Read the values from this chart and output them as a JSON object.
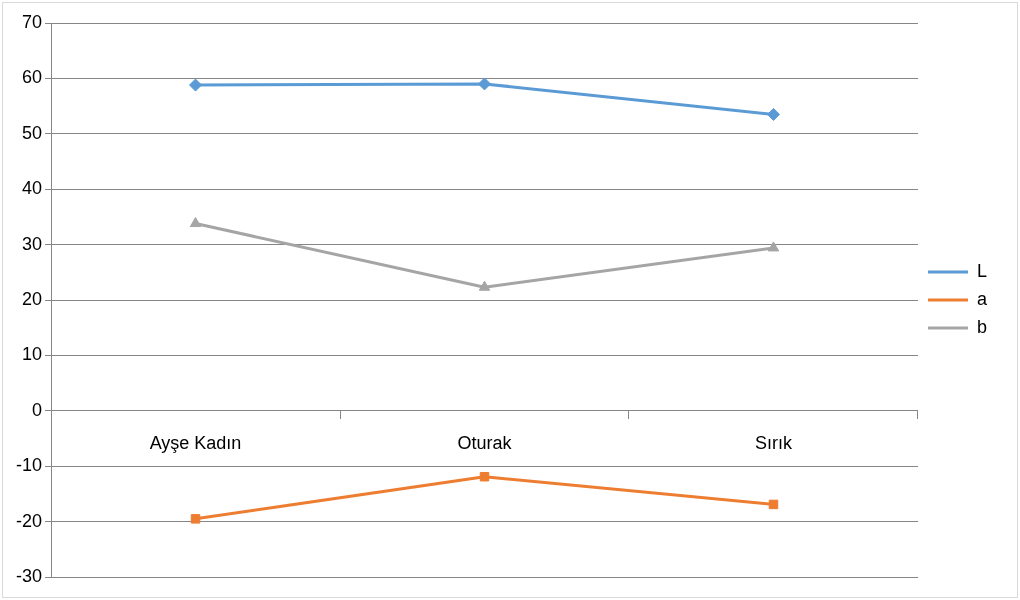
{
  "chart_data": {
    "type": "line",
    "categories": [
      "Ayşe Kadın",
      "Oturak",
      "Sırık"
    ],
    "series": [
      {
        "name": "L",
        "color": "#5b9bd5",
        "marker": "diamond",
        "values": [
          58.8,
          59,
          53.5
        ]
      },
      {
        "name": "a",
        "color": "#ed7d31",
        "marker": "square",
        "values": [
          -19.5,
          -11.9,
          -16.9
        ]
      },
      {
        "name": "b",
        "color": "#a5a5a5",
        "marker": "triangle",
        "values": [
          33.8,
          22.3,
          29.4
        ]
      }
    ],
    "ylim": [
      -30,
      70
    ],
    "yticks": [
      -30,
      -20,
      -10,
      0,
      10,
      20,
      30,
      40,
      50,
      60,
      70
    ],
    "grid": "y",
    "legend": "right"
  }
}
